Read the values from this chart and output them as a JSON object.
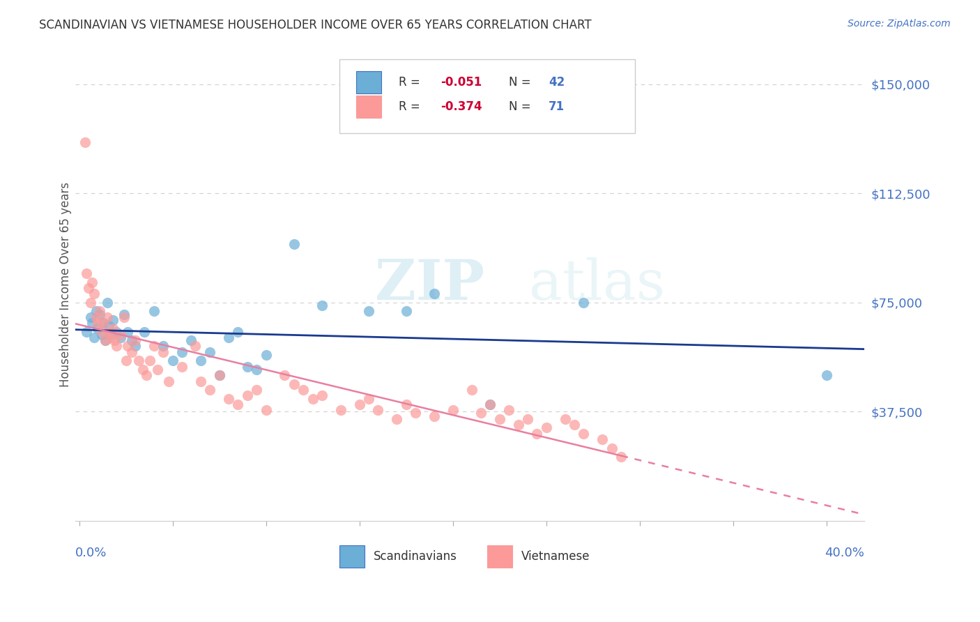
{
  "title": "SCANDINAVIAN VS VIETNAMESE HOUSEHOLDER INCOME OVER 65 YEARS CORRELATION CHART",
  "source": "Source: ZipAtlas.com",
  "ylabel": "Householder Income Over 65 years",
  "ytick_labels": [
    "$150,000",
    "$112,500",
    "$75,000",
    "$37,500"
  ],
  "ytick_values": [
    150000,
    112500,
    75000,
    37500
  ],
  "ymin": 0,
  "ymax": 162500,
  "xmin": -0.002,
  "xmax": 0.42,
  "legend_scand_r_val": "-0.051",
  "legend_scand_n_val": "42",
  "legend_viet_r_val": "-0.374",
  "legend_viet_n_val": "71",
  "scand_color": "#6baed6",
  "viet_color": "#fb9a99",
  "scand_line_color": "#1a3a8f",
  "viet_line_color": "#e87fa0",
  "background_color": "#ffffff",
  "grid_color": "#d0d0d0",
  "title_color": "#333333",
  "axis_label_color": "#4472c4",
  "watermark_zip": "ZIP",
  "watermark_atlas": "atlas",
  "scand_x": [
    0.004,
    0.006,
    0.007,
    0.008,
    0.009,
    0.01,
    0.011,
    0.012,
    0.013,
    0.014,
    0.015,
    0.016,
    0.017,
    0.018,
    0.02,
    0.022,
    0.024,
    0.026,
    0.028,
    0.03,
    0.035,
    0.04,
    0.045,
    0.05,
    0.055,
    0.06,
    0.065,
    0.07,
    0.075,
    0.08,
    0.085,
    0.09,
    0.095,
    0.1,
    0.115,
    0.13,
    0.155,
    0.175,
    0.19,
    0.22,
    0.27,
    0.4
  ],
  "scand_y": [
    65000,
    70000,
    68000,
    63000,
    72000,
    66000,
    71000,
    64000,
    68000,
    62000,
    75000,
    67000,
    64000,
    69000,
    65000,
    63000,
    71000,
    65000,
    62000,
    60000,
    65000,
    72000,
    60000,
    55000,
    58000,
    62000,
    55000,
    58000,
    50000,
    63000,
    65000,
    53000,
    52000,
    57000,
    95000,
    74000,
    72000,
    72000,
    78000,
    40000,
    75000,
    50000
  ],
  "viet_x": [
    0.003,
    0.004,
    0.005,
    0.006,
    0.007,
    0.008,
    0.009,
    0.01,
    0.011,
    0.012,
    0.013,
    0.014,
    0.015,
    0.016,
    0.017,
    0.018,
    0.019,
    0.02,
    0.022,
    0.024,
    0.025,
    0.026,
    0.028,
    0.03,
    0.032,
    0.034,
    0.036,
    0.038,
    0.04,
    0.042,
    0.045,
    0.048,
    0.055,
    0.062,
    0.065,
    0.07,
    0.075,
    0.08,
    0.085,
    0.09,
    0.095,
    0.1,
    0.11,
    0.115,
    0.12,
    0.125,
    0.13,
    0.14,
    0.15,
    0.155,
    0.16,
    0.17,
    0.175,
    0.18,
    0.19,
    0.2,
    0.21,
    0.215,
    0.22,
    0.225,
    0.23,
    0.235,
    0.24,
    0.245,
    0.25,
    0.26,
    0.265,
    0.27,
    0.28,
    0.285,
    0.29
  ],
  "viet_y": [
    130000,
    85000,
    80000,
    75000,
    82000,
    78000,
    70000,
    68000,
    72000,
    65000,
    68000,
    62000,
    70000,
    65000,
    63000,
    66000,
    62000,
    60000,
    64000,
    70000,
    55000,
    60000,
    58000,
    62000,
    55000,
    52000,
    50000,
    55000,
    60000,
    52000,
    58000,
    48000,
    53000,
    60000,
    48000,
    45000,
    50000,
    42000,
    40000,
    43000,
    45000,
    38000,
    50000,
    47000,
    45000,
    42000,
    43000,
    38000,
    40000,
    42000,
    38000,
    35000,
    40000,
    37000,
    36000,
    38000,
    45000,
    37000,
    40000,
    35000,
    38000,
    33000,
    35000,
    30000,
    32000,
    35000,
    33000,
    30000,
    28000,
    25000,
    22000
  ]
}
